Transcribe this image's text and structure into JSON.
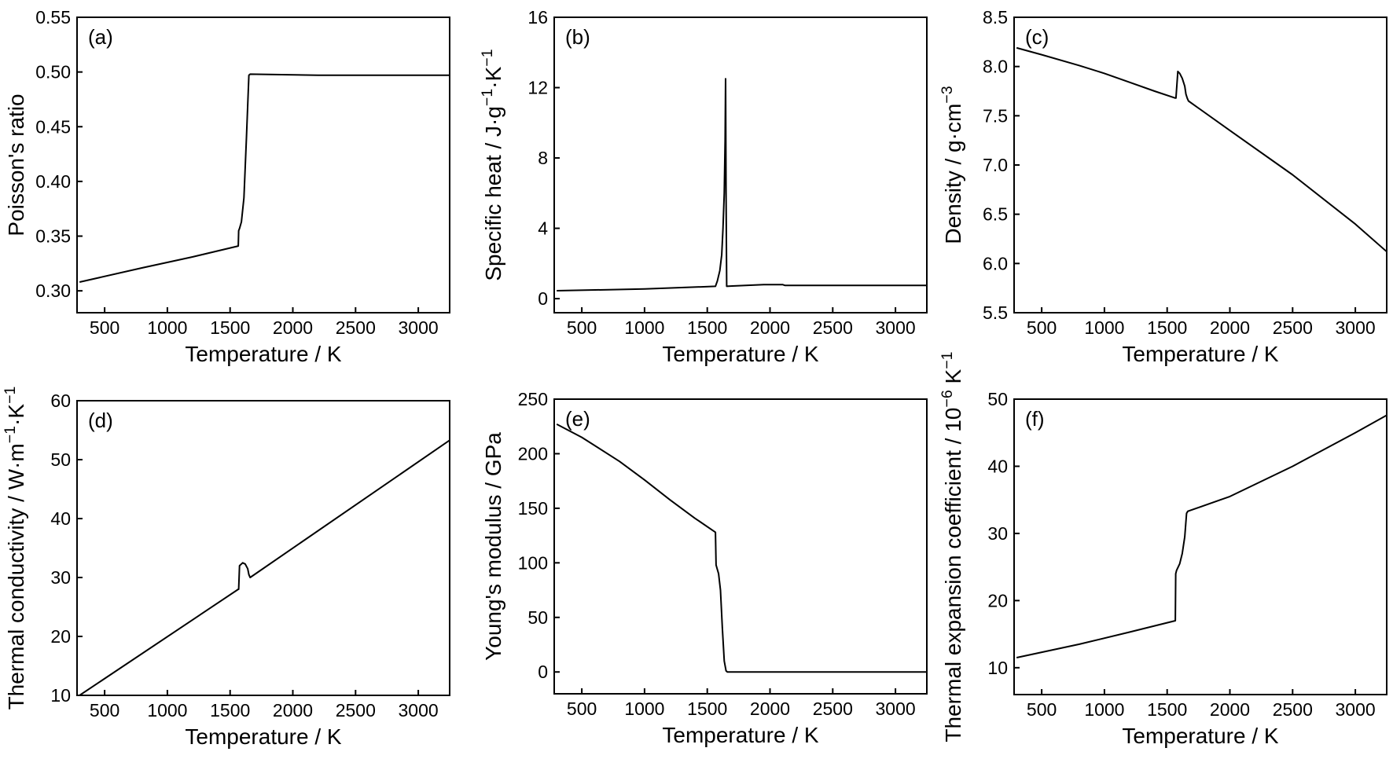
{
  "chart_data": [
    {
      "type": "line",
      "panel_label": "(a)",
      "xlabel": "Temperature / K",
      "ylabel": "Poisson's ratio",
      "xlim": [
        280,
        3250
      ],
      "ylim": [
        0.28,
        0.55
      ],
      "xticks": [
        500,
        1000,
        1500,
        2000,
        2500,
        3000
      ],
      "yticks": [
        0.3,
        0.35,
        0.4,
        0.45,
        0.5,
        0.55
      ],
      "ytick_decimals": 2,
      "series": [
        {
          "x": [
            300,
            800,
            1200,
            1565,
            1568,
            1575,
            1590,
            1610,
            1630,
            1650,
            1660,
            2200,
            3250
          ],
          "y": [
            0.308,
            0.321,
            0.331,
            0.341,
            0.355,
            0.357,
            0.363,
            0.385,
            0.44,
            0.497,
            0.498,
            0.497,
            0.497
          ]
        }
      ]
    },
    {
      "type": "line",
      "panel_label": "(b)",
      "xlabel": "Temperature / K",
      "ylabel": "Specific heat / J·g⁻¹·K⁻¹",
      "xlim": [
        280,
        3250
      ],
      "ylim": [
        -0.8,
        16
      ],
      "xticks": [
        500,
        1000,
        1500,
        2000,
        2500,
        3000
      ],
      "yticks": [
        0,
        4,
        8,
        12,
        16
      ],
      "ytick_decimals": 0,
      "series": [
        {
          "x": [
            300,
            1000,
            1565,
            1580,
            1600,
            1615,
            1625,
            1635,
            1642,
            1646,
            1650,
            1655,
            1700,
            1950,
            2100,
            2120,
            3250
          ],
          "y": [
            0.45,
            0.55,
            0.7,
            1.0,
            1.6,
            2.5,
            4.0,
            6.0,
            9.0,
            12.5,
            6.0,
            0.7,
            0.72,
            0.8,
            0.8,
            0.75,
            0.75
          ]
        }
      ]
    },
    {
      "type": "line",
      "panel_label": "(c)",
      "xlabel": "Temperature / K",
      "ylabel": "Density / g·cm⁻³",
      "xlim": [
        280,
        3250
      ],
      "ylim": [
        5.5,
        8.5
      ],
      "xticks": [
        500,
        1000,
        1500,
        2000,
        2500,
        3000
      ],
      "yticks": [
        5.5,
        6.0,
        6.5,
        7.0,
        7.5,
        8.0,
        8.5
      ],
      "ytick_decimals": 1,
      "series": [
        {
          "x": [
            300,
            500,
            800,
            1000,
            1200,
            1400,
            1565,
            1570,
            1585,
            1600,
            1620,
            1640,
            1650,
            1660,
            1670,
            2000,
            2500,
            3000,
            3250
          ],
          "y": [
            8.19,
            8.12,
            8.01,
            7.93,
            7.84,
            7.75,
            7.68,
            7.68,
            7.95,
            7.93,
            7.88,
            7.8,
            7.72,
            7.68,
            7.65,
            7.35,
            6.9,
            6.4,
            6.12
          ]
        }
      ]
    },
    {
      "type": "line",
      "panel_label": "(d)",
      "xlabel": "Temperature / K",
      "ylabel": "Thermal conductivity / W·m⁻¹·K⁻¹",
      "xlim": [
        280,
        3250
      ],
      "ylim": [
        10,
        60
      ],
      "xticks": [
        500,
        1000,
        1500,
        2000,
        2500,
        3000
      ],
      "yticks": [
        10,
        20,
        30,
        40,
        50,
        60
      ],
      "ytick_decimals": 0,
      "series": [
        {
          "x": [
            300,
            1565,
            1568,
            1575,
            1600,
            1620,
            1640,
            1650,
            1660,
            3250
          ],
          "y": [
            10.0,
            28.0,
            28.0,
            32.0,
            32.5,
            32.3,
            31.5,
            30.5,
            30.0,
            53.3
          ]
        }
      ]
    },
    {
      "type": "line",
      "panel_label": "(e)",
      "xlabel": "Temperature / K",
      "ylabel": "Young's modulus / GPa",
      "xlim": [
        280,
        3250
      ],
      "ylim": [
        -20,
        250
      ],
      "xticks": [
        500,
        1000,
        1500,
        2000,
        2500,
        3000
      ],
      "yticks": [
        0,
        50,
        100,
        150,
        200,
        250
      ],
      "ytick_decimals": 0,
      "series": [
        {
          "x": [
            300,
            500,
            800,
            1000,
            1200,
            1400,
            1565,
            1570,
            1590,
            1605,
            1620,
            1635,
            1650,
            1660,
            3250
          ],
          "y": [
            227,
            215,
            193,
            176,
            158,
            141,
            128,
            98,
            90,
            75,
            40,
            10,
            1,
            0,
            0
          ]
        }
      ]
    },
    {
      "type": "line",
      "panel_label": "(f)",
      "xlabel": "Temperature / K",
      "ylabel": "Thermal expansion coefficient  / 10⁻⁶ K⁻¹",
      "xlim": [
        280,
        3250
      ],
      "ylim": [
        6,
        50
      ],
      "xticks": [
        500,
        1000,
        1500,
        2000,
        2500,
        3000
      ],
      "yticks": [
        10,
        20,
        30,
        40,
        50
      ],
      "ytick_decimals": 0,
      "series": [
        {
          "x": [
            300,
            800,
            1200,
            1565,
            1568,
            1575,
            1600,
            1620,
            1640,
            1655,
            1665,
            2000,
            2500,
            3000,
            3250
          ],
          "y": [
            11.5,
            13.5,
            15.3,
            17.0,
            24.0,
            24.5,
            25.5,
            27.0,
            29.5,
            33.0,
            33.3,
            35.5,
            40.0,
            45.0,
            47.6
          ]
        }
      ]
    }
  ]
}
